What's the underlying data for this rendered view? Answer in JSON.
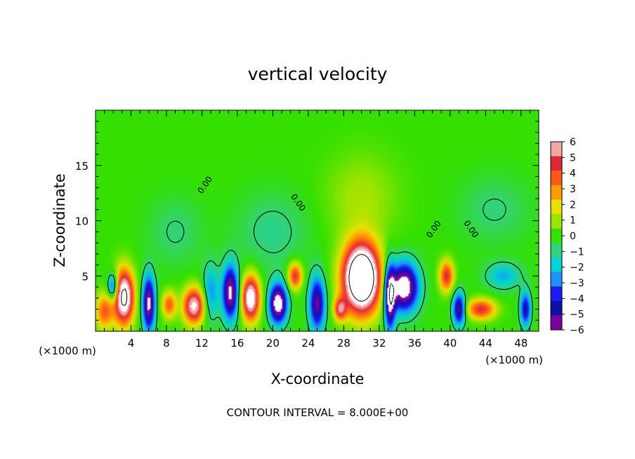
{
  "chart_data": {
    "type": "heatmap",
    "title": "vertical velocity",
    "xlabel": "X-coordinate",
    "ylabel": "Z-coordinate",
    "x_units_left": "(×1000 m)",
    "x_units_right": "(×1000 m)",
    "xlim": [
      0,
      50
    ],
    "ylim": [
      0,
      20
    ],
    "xticks": [
      4,
      8,
      12,
      16,
      20,
      24,
      28,
      32,
      36,
      40,
      44,
      48
    ],
    "yticks": [
      5,
      10,
      15
    ],
    "colorbar": {
      "levels": [
        6,
        5,
        4,
        3,
        2,
        1,
        0,
        -1,
        -2,
        -3,
        -4,
        -5,
        -6
      ],
      "colors": [
        "#f4a6a6",
        "#e0283a",
        "#ff5a1a",
        "#ff9a00",
        "#e8e000",
        "#9ae400",
        "#33e000",
        "#33d27a",
        "#00d2d2",
        "#1e90ff",
        "#1a1aff",
        "#1010a8",
        "#7a00a0"
      ]
    },
    "contour_label": "0.00",
    "contour_interval_text": "CONTOUR INTERVAL = 8.000E+00",
    "cells": [
      {
        "x": 1.0,
        "z": 1.8,
        "w": 4,
        "sx": 1.0,
        "sz": 1.6
      },
      {
        "x": 3.2,
        "z": 3.1,
        "w": 9,
        "sx": 1.1,
        "sz": 2.4
      },
      {
        "x": 8.3,
        "z": 2.4,
        "w": 4,
        "sx": 0.8,
        "sz": 1.2
      },
      {
        "x": 11.1,
        "z": 2.3,
        "w": 7,
        "sx": 1.2,
        "sz": 1.6
      },
      {
        "x": 17.5,
        "z": 3.0,
        "w": 8,
        "sx": 1.0,
        "sz": 2.0
      },
      {
        "x": 22.5,
        "z": 5.0,
        "w": 5,
        "sx": 0.8,
        "sz": 1.2
      },
      {
        "x": 30.0,
        "z": 4.8,
        "w": 13,
        "sx": 2.0,
        "sz": 3.0
      },
      {
        "x": 27.6,
        "z": 2.0,
        "w": 5,
        "sx": 0.7,
        "sz": 1.0
      },
      {
        "x": 34.8,
        "z": 4.0,
        "w": -8,
        "sx": 1.6,
        "sz": 2.2
      },
      {
        "x": 39.6,
        "z": 5.0,
        "w": 5,
        "sx": 0.8,
        "sz": 1.4
      },
      {
        "x": 43.5,
        "z": 2.0,
        "w": 5,
        "sx": 1.6,
        "sz": 0.9
      },
      {
        "x": 6.0,
        "z": 2.5,
        "w": -7,
        "sx": 0.7,
        "sz": 2.5
      },
      {
        "x": 2.0,
        "z": 4.0,
        "w": -5,
        "sx": 0.6,
        "sz": 1.2
      },
      {
        "x": 15.2,
        "z": 3.5,
        "w": -7,
        "sx": 0.9,
        "sz": 2.5
      },
      {
        "x": 20.6,
        "z": 2.5,
        "w": -8,
        "sx": 1.0,
        "sz": 1.8
      },
      {
        "x": 25.0,
        "z": 2.5,
        "w": -6,
        "sx": 0.9,
        "sz": 2.5
      },
      {
        "x": 33.2,
        "z": 3.0,
        "w": -7,
        "sx": 0.6,
        "sz": 3.0
      },
      {
        "x": 41.0,
        "z": 2.0,
        "w": -6,
        "sx": 0.7,
        "sz": 1.5
      },
      {
        "x": 13.0,
        "z": 3.5,
        "w": -3,
        "sx": 0.9,
        "sz": 2.5
      },
      {
        "x": 48.5,
        "z": 2.0,
        "w": -5,
        "sx": 0.6,
        "sz": 1.6
      },
      {
        "x": 46.0,
        "z": 5.0,
        "w": -2.5,
        "sx": 2.0,
        "sz": 1.2
      },
      {
        "x": 20.0,
        "z": 9.0,
        "w": -1.2,
        "sx": 4.0,
        "sz": 3.5
      },
      {
        "x": 9.0,
        "z": 9.0,
        "w": -1.0,
        "sx": 3.0,
        "sz": 3.0
      },
      {
        "x": 30.0,
        "z": 12.0,
        "w": 1.2,
        "sx": 4.0,
        "sz": 4.0
      },
      {
        "x": 45.0,
        "z": 11.0,
        "w": -1.0,
        "sx": 4.0,
        "sz": 3.0
      }
    ]
  }
}
